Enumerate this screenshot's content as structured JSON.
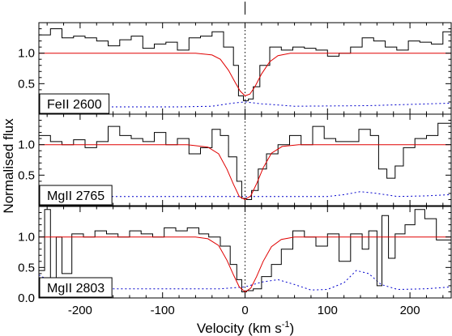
{
  "chart_data": {
    "type": "line",
    "xlabel_main": "Velocity (km s",
    "xlabel_sup": "-1",
    "xlabel_close": ")",
    "ylabel": "Normalised flux",
    "xlim": [
      -250,
      250
    ],
    "xticks": [
      -200,
      -100,
      0,
      100,
      200
    ],
    "xtick_labels": [
      "-200",
      "-100",
      "0",
      "100",
      "200"
    ],
    "panels": [
      {
        "label": "FeII 2600",
        "ylim": [
          0.0,
          1.5
        ],
        "yticks": [
          0.5,
          1.0
        ],
        "ytick_labels": [
          "0.5",
          "1.0"
        ],
        "flux": [
          [
            -250,
            1.3
          ],
          [
            -236,
            1.4
          ],
          [
            -222,
            1.25
          ],
          [
            -208,
            1.28
          ],
          [
            -194,
            1.25
          ],
          [
            -180,
            1.2
          ],
          [
            -166,
            1.12
          ],
          [
            -152,
            1.22
          ],
          [
            -138,
            1.28
          ],
          [
            -124,
            1.08
          ],
          [
            -110,
            1.15
          ],
          [
            -96,
            1.18
          ],
          [
            -82,
            1.05
          ],
          [
            -68,
            1.25
          ],
          [
            -54,
            1.28
          ],
          [
            -40,
            1.35
          ],
          [
            -26,
            1.1
          ],
          [
            -14,
            0.8
          ],
          [
            -8,
            0.3
          ],
          [
            -2,
            0.22
          ],
          [
            4,
            0.25
          ],
          [
            10,
            0.45
          ],
          [
            18,
            0.8
          ],
          [
            30,
            1.1
          ],
          [
            44,
            1.05
          ],
          [
            58,
            1.1
          ],
          [
            72,
            1.08
          ],
          [
            86,
            1.05
          ],
          [
            100,
            0.95
          ],
          [
            114,
            1.0
          ],
          [
            128,
            1.1
          ],
          [
            142,
            1.25
          ],
          [
            156,
            1.2
          ],
          [
            170,
            1.1
          ],
          [
            184,
            1.05
          ],
          [
            198,
            1.2
          ],
          [
            212,
            1.18
          ],
          [
            226,
            1.15
          ],
          [
            240,
            1.35
          ],
          [
            250,
            1.35
          ]
        ],
        "fit": [
          [
            -250,
            1.0
          ],
          [
            -60,
            1.0
          ],
          [
            -40,
            0.97
          ],
          [
            -30,
            0.9
          ],
          [
            -20,
            0.72
          ],
          [
            -12,
            0.52
          ],
          [
            -6,
            0.38
          ],
          [
            0,
            0.3
          ],
          [
            6,
            0.33
          ],
          [
            12,
            0.45
          ],
          [
            20,
            0.66
          ],
          [
            30,
            0.86
          ],
          [
            40,
            0.96
          ],
          [
            55,
            1.0
          ],
          [
            250,
            1.0
          ]
        ],
        "error": [
          [
            -250,
            0.12
          ],
          [
            -80,
            0.12
          ],
          [
            -40,
            0.13
          ],
          [
            -15,
            0.18
          ],
          [
            0,
            0.2
          ],
          [
            20,
            0.17
          ],
          [
            60,
            0.13
          ],
          [
            150,
            0.14
          ],
          [
            250,
            0.18
          ]
        ]
      },
      {
        "label": "MgII 2765",
        "ylim": [
          0.0,
          1.5
        ],
        "yticks": [
          0.5,
          1.0
        ],
        "ytick_labels": [
          "0.5",
          "1.0"
        ],
        "flux": [
          [
            -250,
            1.15
          ],
          [
            -236,
            1.05
          ],
          [
            -222,
            1.0
          ],
          [
            -208,
            1.08
          ],
          [
            -194,
            0.95
          ],
          [
            -180,
            1.05
          ],
          [
            -166,
            1.3
          ],
          [
            -152,
            1.15
          ],
          [
            -138,
            1.1
          ],
          [
            -124,
            1.05
          ],
          [
            -110,
            1.2
          ],
          [
            -96,
            1.0
          ],
          [
            -82,
            1.1
          ],
          [
            -68,
            0.85
          ],
          [
            -54,
            0.95
          ],
          [
            -40,
            1.25
          ],
          [
            -30,
            1.15
          ],
          [
            -20,
            0.8
          ],
          [
            -10,
            0.4
          ],
          [
            -4,
            0.12
          ],
          [
            2,
            0.1
          ],
          [
            8,
            0.25
          ],
          [
            16,
            0.6
          ],
          [
            26,
            0.85
          ],
          [
            40,
            1.0
          ],
          [
            54,
            1.15
          ],
          [
            68,
            1.0
          ],
          [
            82,
            1.3
          ],
          [
            96,
            1.1
          ],
          [
            110,
            1.05
          ],
          [
            124,
            1.05
          ],
          [
            138,
            1.25
          ],
          [
            152,
            1.15
          ],
          [
            162,
            0.6
          ],
          [
            172,
            0.45
          ],
          [
            182,
            0.65
          ],
          [
            192,
            0.95
          ],
          [
            206,
            1.1
          ],
          [
            220,
            1.15
          ],
          [
            234,
            1.35
          ],
          [
            250,
            1.3
          ]
        ],
        "fit": [
          [
            -250,
            1.0
          ],
          [
            -70,
            1.0
          ],
          [
            -45,
            0.96
          ],
          [
            -32,
            0.85
          ],
          [
            -22,
            0.6
          ],
          [
            -14,
            0.35
          ],
          [
            -7,
            0.15
          ],
          [
            0,
            0.1
          ],
          [
            7,
            0.16
          ],
          [
            14,
            0.36
          ],
          [
            22,
            0.62
          ],
          [
            32,
            0.86
          ],
          [
            45,
            0.97
          ],
          [
            65,
            1.0
          ],
          [
            250,
            1.0
          ]
        ],
        "error": [
          [
            -250,
            0.15
          ],
          [
            -120,
            0.15
          ],
          [
            -40,
            0.15
          ],
          [
            0,
            0.15
          ],
          [
            60,
            0.15
          ],
          [
            100,
            0.15
          ],
          [
            120,
            0.18
          ],
          [
            140,
            0.23
          ],
          [
            160,
            0.2
          ],
          [
            185,
            0.15
          ],
          [
            220,
            0.16
          ],
          [
            250,
            0.18
          ]
        ]
      },
      {
        "label": "MgII 2803",
        "ylim": [
          0.0,
          1.5
        ],
        "yticks": [
          0.0,
          0.5,
          1.0
        ],
        "ytick_labels": [
          "0.0",
          "0.5",
          "1.0"
        ],
        "flux": [
          [
            -250,
            0.45
          ],
          [
            -243,
            1.45
          ],
          [
            -236,
            0.3
          ],
          [
            -229,
            1.0
          ],
          [
            -222,
            0.4
          ],
          [
            -210,
            1.05
          ],
          [
            -196,
            1.0
          ],
          [
            -182,
            1.1
          ],
          [
            -168,
            1.05
          ],
          [
            -154,
            1.0
          ],
          [
            -140,
            1.1
          ],
          [
            -126,
            1.05
          ],
          [
            -112,
            1.0
          ],
          [
            -98,
            1.15
          ],
          [
            -84,
            1.1
          ],
          [
            -70,
            1.15
          ],
          [
            -56,
            1.05
          ],
          [
            -44,
            1.0
          ],
          [
            -30,
            0.85
          ],
          [
            -18,
            0.55
          ],
          [
            -10,
            0.3
          ],
          [
            -4,
            0.1
          ],
          [
            2,
            0.12
          ],
          [
            10,
            0.15
          ],
          [
            20,
            0.35
          ],
          [
            32,
            0.55
          ],
          [
            44,
            0.8
          ],
          [
            58,
            1.1
          ],
          [
            72,
            1.0
          ],
          [
            86,
            0.85
          ],
          [
            100,
            1.05
          ],
          [
            114,
            0.6
          ],
          [
            128,
            1.05
          ],
          [
            142,
            0.8
          ],
          [
            150,
            1.1
          ],
          [
            160,
            0.2
          ],
          [
            166,
            1.35
          ],
          [
            174,
            0.65
          ],
          [
            182,
            1.05
          ],
          [
            194,
            1.2
          ],
          [
            206,
            1.45
          ],
          [
            218,
            1.3
          ],
          [
            232,
            0.95
          ],
          [
            250,
            1.1
          ]
        ],
        "fit": [
          [
            -250,
            1.0
          ],
          [
            -60,
            1.0
          ],
          [
            -45,
            0.97
          ],
          [
            -32,
            0.86
          ],
          [
            -22,
            0.62
          ],
          [
            -14,
            0.38
          ],
          [
            -7,
            0.18
          ],
          [
            0,
            0.1
          ],
          [
            7,
            0.16
          ],
          [
            14,
            0.35
          ],
          [
            22,
            0.6
          ],
          [
            32,
            0.84
          ],
          [
            44,
            0.96
          ],
          [
            60,
            1.0
          ],
          [
            250,
            1.0
          ]
        ],
        "error": [
          [
            -250,
            0.38
          ],
          [
            -240,
            0.3
          ],
          [
            -220,
            0.18
          ],
          [
            -180,
            0.15
          ],
          [
            -100,
            0.15
          ],
          [
            -30,
            0.15
          ],
          [
            0,
            0.18
          ],
          [
            20,
            0.26
          ],
          [
            40,
            0.3
          ],
          [
            60,
            0.22
          ],
          [
            80,
            0.13
          ],
          [
            100,
            0.14
          ],
          [
            120,
            0.25
          ],
          [
            135,
            0.45
          ],
          [
            150,
            0.4
          ],
          [
            165,
            0.22
          ],
          [
            185,
            0.14
          ],
          [
            220,
            0.15
          ],
          [
            250,
            0.18
          ]
        ]
      }
    ],
    "colors": {
      "data": "#000000",
      "fit": "#e00000",
      "error": "#0000cc"
    },
    "marker_x": 0,
    "grid": false
  }
}
